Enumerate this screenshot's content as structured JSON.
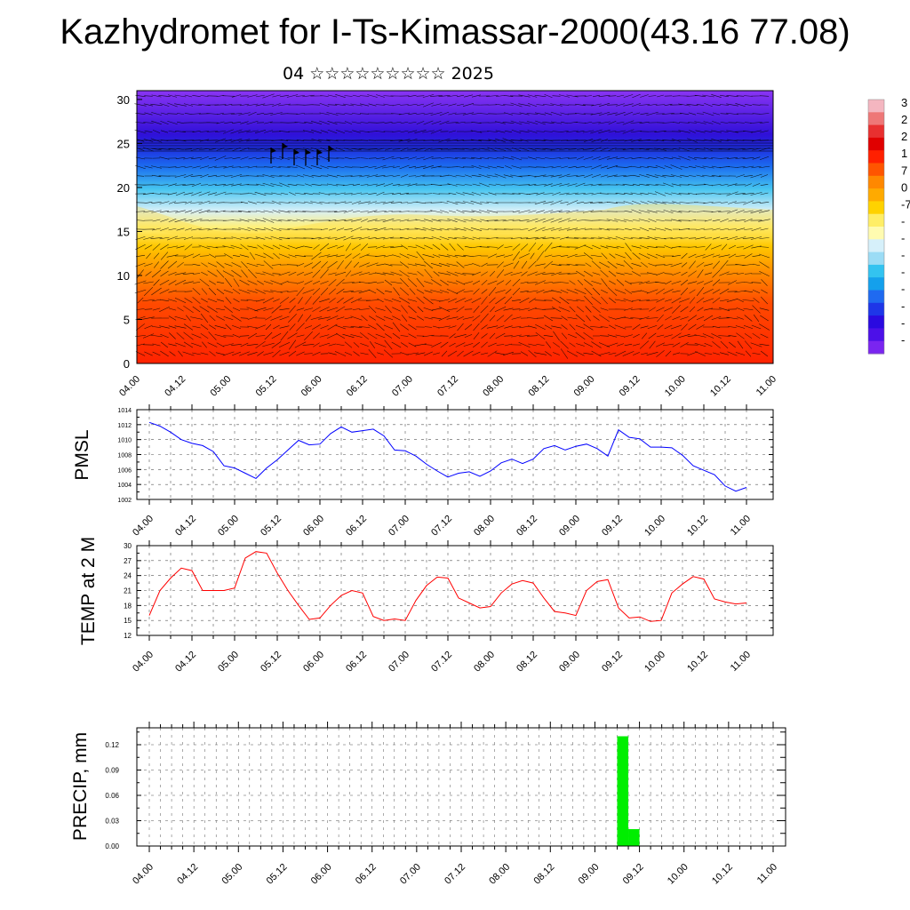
{
  "header": {
    "title": "Kazhydromet for I-Ts-Kimassar-2000(43.16 77.08)",
    "subtitle": "04 ☆☆☆☆☆☆☆☆☆ 2025"
  },
  "colors": {
    "pmsl_line": "#0000ff",
    "temp_line": "#ff0000",
    "precip_bar": "#00ee00",
    "grid": "#555555"
  },
  "chart_data": [
    {
      "type": "heatmap",
      "name": "Vertical cross-section (temperature shading with wind vectors)",
      "x_tick_labels": [
        "04.00",
        "04.12",
        "05.00",
        "05.12",
        "06.00",
        "06.12",
        "07.00",
        "07.12",
        "08.00",
        "08.12",
        "09.00",
        "09.12",
        "10.00",
        "10.12",
        "11.00"
      ],
      "y_ticks": [
        0,
        5,
        10,
        15,
        20,
        25,
        30
      ],
      "ylim": [
        0,
        31
      ],
      "colorbar": {
        "visible_labels": [
          "3",
          "2",
          "2",
          "1",
          "7",
          "0",
          "-7",
          "-",
          "-",
          "-",
          "-",
          "-",
          "-",
          "-",
          "-"
        ],
        "colors": [
          "#f4b6c0",
          "#ee7777",
          "#e83030",
          "#e00000",
          "#ff2000",
          "#ff5500",
          "#ff8800",
          "#ffaa00",
          "#ffd200",
          "#ffee66",
          "#fffbb0",
          "#d6f0fa",
          "#9bdcf5",
          "#33c3f0",
          "#14a0ec",
          "#1f6af0",
          "#1e36e8",
          "#2a0ae0",
          "#4c10e8",
          "#7a25f0"
        ]
      }
    },
    {
      "type": "line",
      "ylabel": "PMSL",
      "x_tick_labels": [
        "04.00",
        "04.12",
        "05.00",
        "05.12",
        "06.00",
        "06.12",
        "07.00",
        "07.12",
        "08.00",
        "08.12",
        "09.00",
        "09.12",
        "10.00",
        "10.12",
        "11.00"
      ],
      "y_ticks": [
        1002,
        1004,
        1006,
        1008,
        1010,
        1012,
        1014
      ],
      "ylim": [
        1002,
        1014
      ],
      "x_hours_start": 0,
      "x_hours_step": 3,
      "values": [
        1012.3,
        1011.8,
        1011.0,
        1010.0,
        1009.5,
        1009.2,
        1008.4,
        1006.5,
        1006.2,
        1005.5,
        1004.8,
        1006.2,
        1007.3,
        1008.6,
        1009.9,
        1009.3,
        1009.4,
        1010.8,
        1011.7,
        1011.0,
        1011.2,
        1011.4,
        1010.5,
        1008.6,
        1008.5,
        1007.8,
        1006.7,
        1005.8,
        1005.0,
        1005.5,
        1005.7,
        1005.1,
        1005.8,
        1006.9,
        1007.4,
        1006.8,
        1007.4,
        1008.8,
        1009.2,
        1008.6,
        1009.1,
        1009.4,
        1008.8,
        1007.8,
        1011.3,
        1010.3,
        1010.1,
        1009.0,
        1009.0,
        1008.9,
        1007.9,
        1006.5,
        1005.9,
        1005.3,
        1003.8,
        1003.1,
        1003.6
      ]
    },
    {
      "type": "line",
      "ylabel": "TEMP at 2 M",
      "x_tick_labels": [
        "04.00",
        "04.12",
        "05.00",
        "05.12",
        "06.00",
        "06.12",
        "07.00",
        "07.12",
        "08.00",
        "08.12",
        "09.00",
        "09.12",
        "10.00",
        "10.12",
        "11.00"
      ],
      "y_ticks": [
        12,
        15,
        18,
        21,
        24,
        27,
        30
      ],
      "ylim": [
        12,
        30
      ],
      "x_hours_start": 0,
      "x_hours_step": 3,
      "values": [
        16.0,
        21.0,
        23.5,
        25.5,
        25.0,
        21.0,
        21.0,
        21.0,
        21.5,
        27.5,
        28.8,
        28.5,
        24.5,
        21.0,
        18.0,
        15.2,
        15.5,
        18.0,
        20.0,
        21.0,
        20.5,
        15.8,
        15.0,
        15.3,
        15.0,
        19.0,
        22.0,
        23.7,
        23.5,
        19.5,
        18.5,
        17.5,
        17.8,
        20.5,
        22.3,
        23.0,
        22.5,
        19.5,
        16.8,
        16.5,
        16.0,
        21.0,
        22.8,
        23.2,
        17.5,
        15.5,
        15.7,
        14.8,
        15.0,
        20.5,
        22.3,
        23.8,
        23.3,
        19.3,
        18.7,
        18.3,
        18.5
      ]
    },
    {
      "type": "bar",
      "ylabel": "PRECIP, mm",
      "x_tick_labels": [
        "04.00",
        "04.12",
        "05.00",
        "05.12",
        "06.00",
        "06.12",
        "07.00",
        "07.12",
        "08.00",
        "08.12",
        "09.00",
        "09.12",
        "10.00",
        "10.12",
        "11.00"
      ],
      "y_tick_labels": [
        "0.00",
        "0.03",
        "0.06",
        "0.09",
        "0.12"
      ],
      "ylim": [
        0,
        0.14
      ],
      "bars": [
        {
          "x_hours": 127.5,
          "value": 0.13
        },
        {
          "x_hours": 130.5,
          "value": 0.02
        }
      ]
    }
  ]
}
